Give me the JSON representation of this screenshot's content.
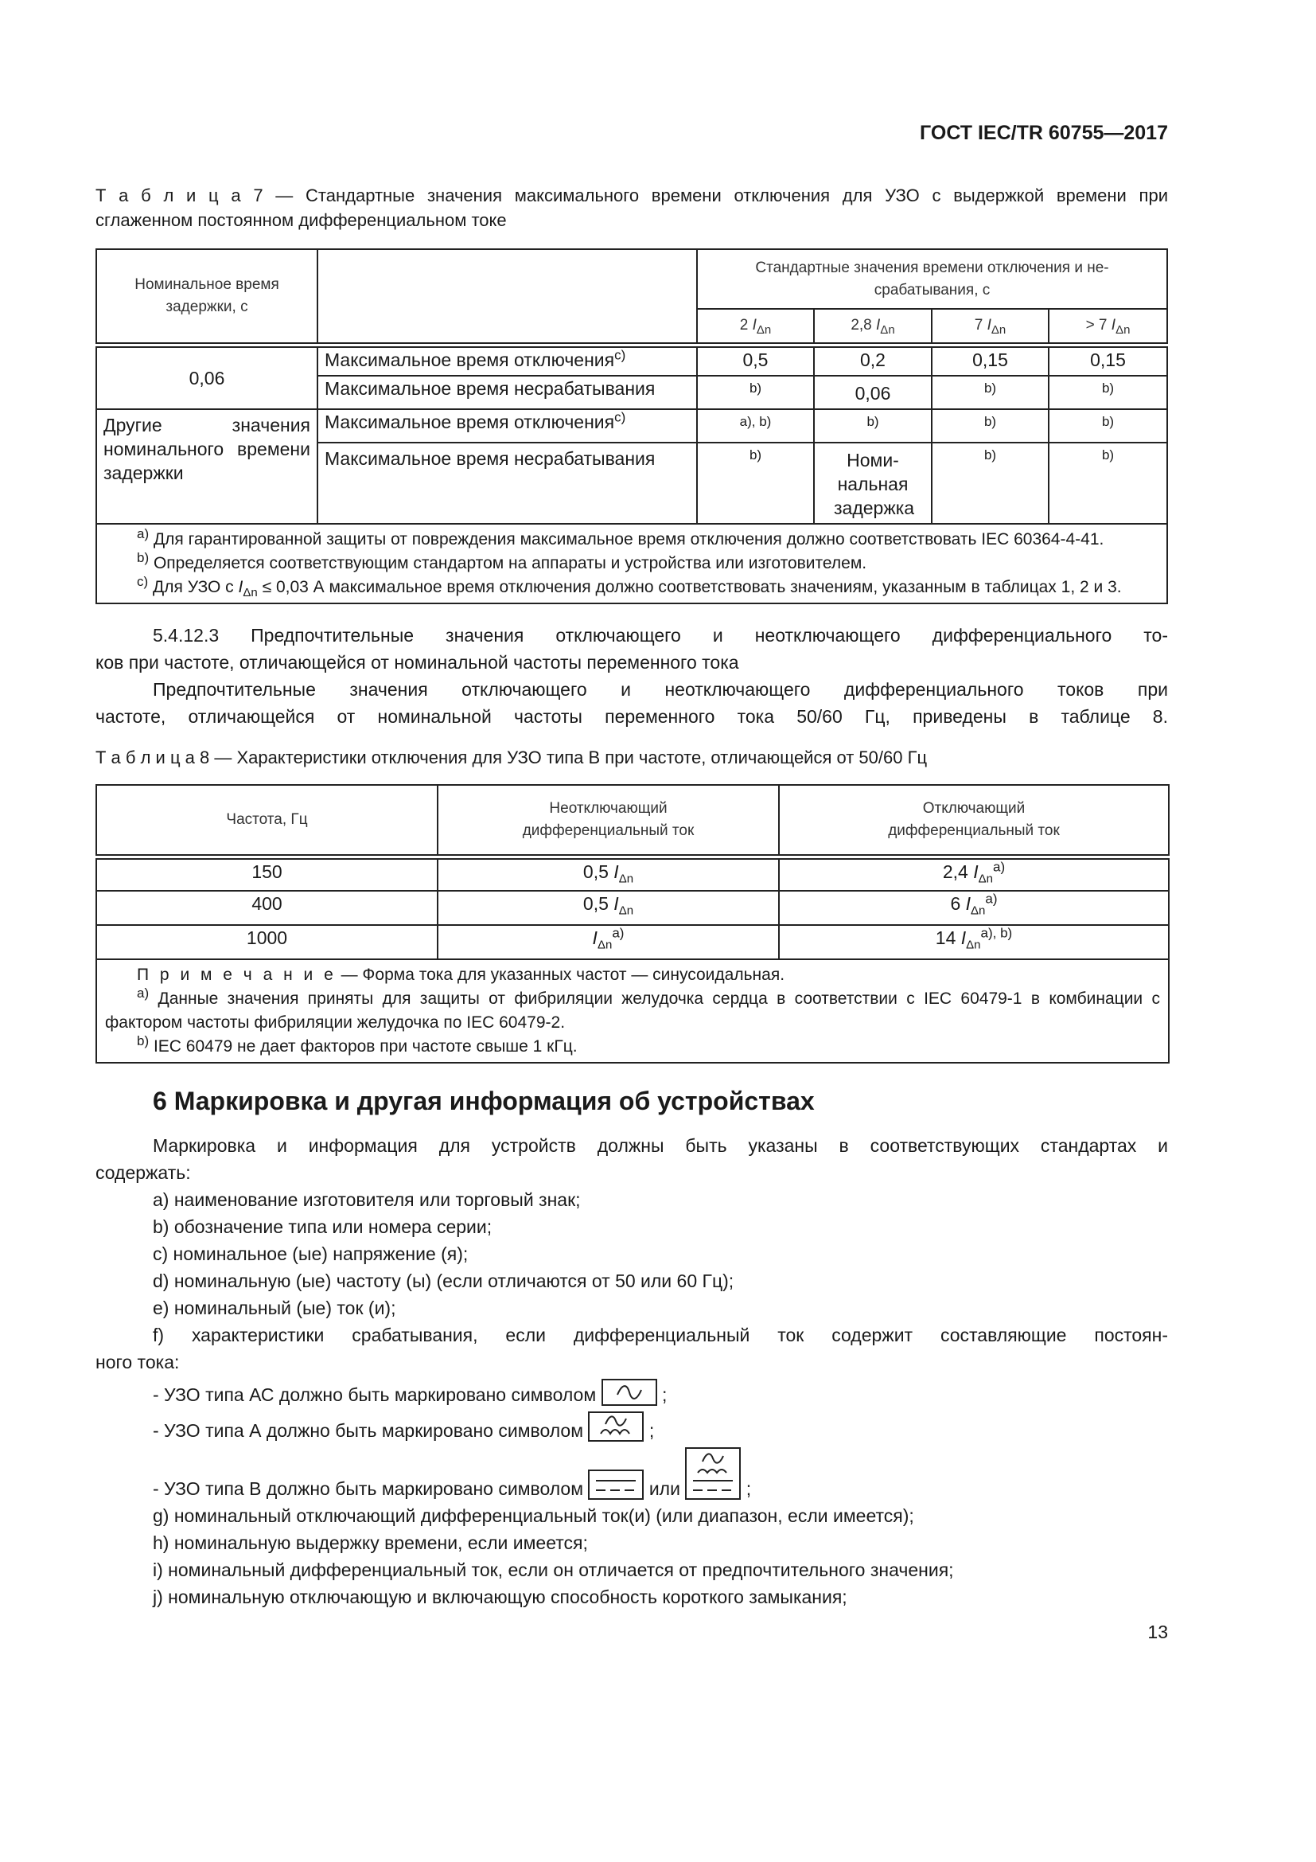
{
  "header": {
    "doc_id": "ГОСТ IEC/TR 60755—2017"
  },
  "table7": {
    "caption_label": "Т а б л и ц а 7",
    "caption_line1": " — Стандартные значения максимального времени отключения для УЗО с выдержкой времени при",
    "caption_line2": "сглаженном  постоянном дифференциальном токе",
    "col_delay": "Номинальное время задержки, с",
    "col_std": "Стандартные значения времени отключения и не-срабатывания, с",
    "multiples": [
      {
        "coef": "2 ",
        "sym": "I",
        "sub": "Δn"
      },
      {
        "coef": "2,8 ",
        "sym": "I",
        "sub": "Δn"
      },
      {
        "coef": "7 ",
        "sym": "I",
        "sub": "Δn"
      },
      {
        "coef": "> 7 ",
        "sym": "I",
        "sub": "Δn"
      }
    ],
    "group1": {
      "delay": "0,06",
      "row1": {
        "label": "Максимальное время отключения",
        "mark": "c)",
        "values": [
          "0,5",
          "0,2",
          "0,15",
          "0,15"
        ]
      },
      "row2": {
        "label": "Максимальное время несрабатывания",
        "values": [
          "b)",
          "0,06",
          "b)",
          "b)"
        ]
      }
    },
    "group2": {
      "delay": "Другие значения номинального времени задержки",
      "row1": {
        "label": "Максимальное время отключения",
        "mark": "c)",
        "values": [
          "a), b)",
          "b)",
          "b)",
          "b)"
        ]
      },
      "row2": {
        "label": "Максимальное время несрабатывания",
        "values": [
          "b)",
          "Номи-нальная задержка",
          "b)",
          "b)"
        ]
      }
    },
    "notes": [
      {
        "mark": "a)",
        "text": " Для гарантированной защиты от повреждения  максимальное время отключения должно соответствовать IEC 60364-4-41."
      },
      {
        "mark": "b)",
        "text": " Определяется соответствующим стандартом на аппараты и устройства или изготовителем."
      },
      {
        "mark": "c)",
        "text_before": " Для УЗО с ",
        "sym": "I",
        "sub": "Δn",
        "text_after": " ≤ 0,03 А максимальное время отключения должно соответствовать значениям, указанным в таблицах 1, 2 и 3."
      }
    ]
  },
  "para_5_4_12_3": {
    "line1": "5.4.12.3 Предпочтительные значения отключающего и неотключающего дифференциального то-",
    "line2": "ков при частоте, отличающейся от номинальной частоты переменного тока",
    "line3": "Предпочтительные значения отключающего и неотключающего дифференциального токов при",
    "line4": "частоте, отличающейся от номинальной частоты переменного тока 50/60 Гц, приведены в таблице 8."
  },
  "table8": {
    "caption_label": "Т а б л и ц а  8",
    "caption_text": " — Характеристики отключения для УЗО типа В при частоте, отличающейся от 50/60 Гц",
    "headers": [
      "Частота, Гц",
      "Неотключающий дифференциальный ток",
      "Отключающий дифференциальный ток"
    ],
    "rows": [
      {
        "freq": "150",
        "non_trip": {
          "coef": "0,5 ",
          "sym": "I",
          "sub": "Δn",
          "mark": ""
        },
        "trip": {
          "coef": "2,4 ",
          "sym": "I",
          "sub": "Δn",
          "mark": "a)"
        }
      },
      {
        "freq": "400",
        "non_trip": {
          "coef": "0,5 ",
          "sym": "I",
          "sub": "Δn",
          "mark": ""
        },
        "trip": {
          "coef": "6 ",
          "sym": "I",
          "sub": "Δn",
          "mark": "a)"
        }
      },
      {
        "freq": "1000",
        "non_trip": {
          "coef": "",
          "sym": "I",
          "sub": "Δn",
          "mark": "a)"
        },
        "trip": {
          "coef": "14 ",
          "sym": "I",
          "sub": "Δn",
          "mark": "a), b)"
        }
      }
    ],
    "note_label": "П р и м е ч а н и е",
    "note_text": " — Форма тока для указанных частот — синусоидальная.",
    "notes": [
      {
        "mark": "a)",
        "text": " Данные значения приняты для защиты от фибриляции желудочка сердца в соответствии с IEC 60479-1 в комбинации с фактором частоты фибриляции желудочка по IEC 60479-2."
      },
      {
        "mark": "b)",
        "text": " IEC 60479 не дает факторов при частоте свыше 1 кГц."
      }
    ]
  },
  "section6": {
    "heading": "6 Маркировка и другая информация об устройствах",
    "intro_line1": "Маркировка и информация для устройств должны быть указаны в соответствующих стандартах и",
    "intro_line2": "содержать:",
    "items": [
      "a) наименование изготовителя или торговый знак;",
      "b) обозначение типа или номера серии;",
      "c) номинальное (ые) напряжение (я);",
      "d)  номинальную (ые) частоту (ы) (если отличаются от 50 или 60 Гц);",
      "e) номинальный (ые) ток (и);"
    ],
    "item_f_line1": "f)  характеристики срабатывания, если дифференциальный ток содержит составляющие постоян-",
    "item_f_line2": "ного тока:",
    "type_ac": "- УЗО типа АС должно быть маркировано символом",
    "type_a": "- УЗО типа А должно быть маркировано символом",
    "type_b": "- УЗО типа В должно быть маркировано символом",
    "or": "или",
    "semicolon": ";",
    "items_after": [
      "g) номинальный отключающий дифференциальный ток(и) (или диапазон, если имеется);",
      "h) номинальную выдержку времени, если имеется;",
      "i) номинальный дифференциальный ток, если он отличается от предпочтительного значения;",
      "j) номинальную отключающую и включающую способность короткого замыкания;"
    ],
    "symbols": [
      "ac-sine-icon",
      "pulsating-dc-icon",
      "smooth-dc-icon",
      "combined-ac-dc-icon"
    ]
  },
  "footer": {
    "page_number": "13"
  }
}
